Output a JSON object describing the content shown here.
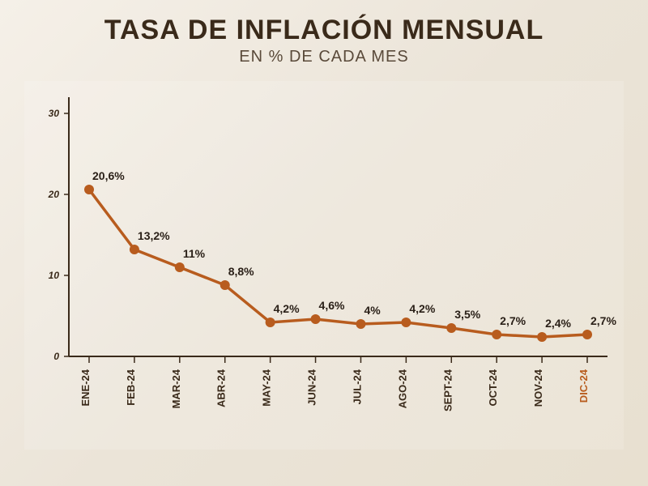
{
  "header": {
    "title": "TASA DE INFLACIÓN MENSUAL",
    "subtitle": "EN % DE CADA MES"
  },
  "chart": {
    "type": "line",
    "background_color": "transparent",
    "line_color": "#b85c1e",
    "marker_color": "#b85c1e",
    "marker_radius": 6,
    "line_width": 3.5,
    "axis_color": "#3a2a1a",
    "y": {
      "min": 0,
      "max": 32,
      "ticks": [
        0,
        10,
        20,
        30
      ],
      "label_fontsize": 12
    },
    "x": {
      "labels": [
        "ENE-24",
        "FEB-24",
        "MAR-24",
        "ABR-24",
        "MAY-24",
        "JUN-24",
        "JUL-24",
        "AGO-24",
        "SEPT-24",
        "OCT-24",
        "NOV-24",
        "DIC-24"
      ],
      "highlight_index": 11,
      "label_fontsize": 13
    },
    "series": {
      "values": [
        20.6,
        13.2,
        11,
        8.8,
        4.2,
        4.6,
        4,
        4.2,
        3.5,
        2.7,
        2.4,
        2.7
      ],
      "labels": [
        "20,6%",
        "13,2%",
        "11%",
        "8,8%",
        "4,2%",
        "4,6%",
        "4%",
        "4,2%",
        "3,5%",
        "2,7%",
        "2,4%",
        "2,7%"
      ],
      "highlight_index": 11,
      "label_fontsize": 14
    }
  }
}
